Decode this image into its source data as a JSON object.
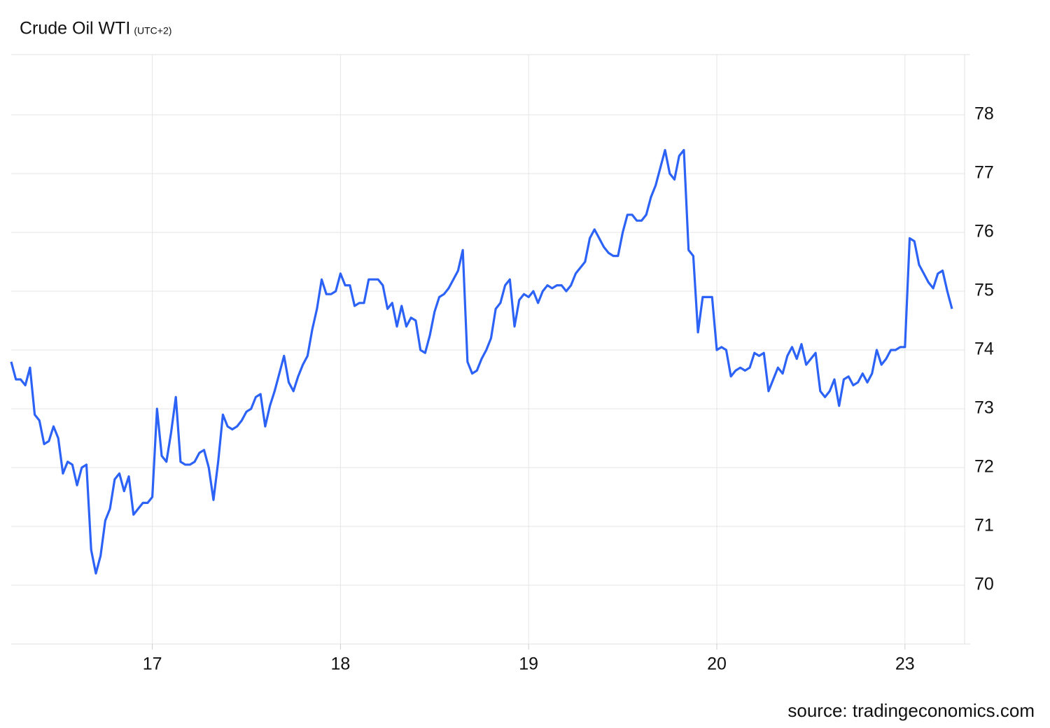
{
  "chart_data": {
    "type": "line",
    "title": "Crude Oil WTI",
    "subtitle": "(UTC+2)",
    "source": "source: tradingeconomics.com",
    "categories": [
      null,
      null,
      null,
      null,
      null,
      null,
      null,
      null,
      null,
      null,
      null,
      null,
      null,
      null,
      null,
      null,
      null,
      null,
      null,
      null,
      null,
      null,
      null,
      null,
      null,
      null,
      null,
      null,
      null,
      null,
      "17",
      null,
      null,
      null,
      null,
      null,
      null,
      null,
      null,
      null,
      null,
      null,
      null,
      null,
      null,
      null,
      null,
      null,
      null,
      null,
      null,
      null,
      null,
      null,
      null,
      null,
      null,
      null,
      null,
      null,
      null,
      null,
      null,
      null,
      null,
      null,
      null,
      null,
      null,
      null,
      "18",
      null,
      null,
      null,
      null,
      null,
      null,
      null,
      null,
      null,
      null,
      null,
      null,
      null,
      null,
      null,
      null,
      null,
      null,
      null,
      null,
      null,
      null,
      null,
      null,
      null,
      null,
      null,
      null,
      null,
      null,
      null,
      null,
      null,
      null,
      null,
      null,
      null,
      null,
      null,
      "19",
      null,
      null,
      null,
      null,
      null,
      null,
      null,
      null,
      null,
      null,
      null,
      null,
      null,
      null,
      null,
      null,
      null,
      null,
      null,
      null,
      null,
      null,
      null,
      null,
      null,
      null,
      null,
      null,
      null,
      null,
      null,
      null,
      null,
      null,
      null,
      null,
      null,
      null,
      null,
      "20",
      null,
      null,
      null,
      null,
      null,
      null,
      null,
      null,
      null,
      null,
      null,
      null,
      null,
      null,
      null,
      null,
      null,
      null,
      null,
      null,
      null,
      null,
      null,
      null,
      null,
      null,
      null,
      null,
      null,
      null,
      null,
      null,
      null,
      null,
      null,
      null,
      null,
      null,
      null,
      "23",
      null,
      null,
      null,
      null,
      null,
      null,
      null,
      null,
      null,
      null
    ],
    "series": [
      {
        "name": "Crude Oil WTI",
        "color": "#2c63f6",
        "values": [
          73.8,
          73.5,
          73.5,
          73.4,
          73.7,
          72.9,
          72.8,
          72.4,
          72.45,
          72.7,
          72.5,
          71.9,
          72.1,
          72.05,
          71.7,
          72.0,
          72.05,
          70.6,
          70.2,
          70.5,
          71.1,
          71.3,
          71.8,
          71.9,
          71.6,
          71.85,
          71.2,
          71.3,
          71.4,
          71.4,
          71.5,
          73.0,
          72.2,
          72.1,
          72.6,
          73.2,
          72.1,
          72.05,
          72.05,
          72.1,
          72.25,
          72.3,
          72.0,
          71.45,
          72.1,
          72.9,
          72.7,
          72.65,
          72.7,
          72.8,
          72.95,
          73.0,
          73.2,
          73.25,
          72.7,
          73.05,
          73.3,
          73.6,
          73.9,
          73.45,
          73.3,
          73.55,
          73.75,
          73.9,
          74.35,
          74.7,
          75.2,
          74.95,
          74.95,
          75.0,
          75.3,
          75.1,
          75.1,
          74.75,
          74.8,
          74.8,
          75.2,
          75.2,
          75.2,
          75.1,
          74.7,
          74.8,
          74.4,
          74.75,
          74.4,
          74.55,
          74.5,
          74.0,
          73.95,
          74.25,
          74.65,
          74.9,
          74.95,
          75.05,
          75.2,
          75.35,
          75.7,
          73.8,
          73.6,
          73.65,
          73.85,
          74.0,
          74.2,
          74.7,
          74.8,
          75.1,
          75.2,
          74.4,
          74.85,
          74.95,
          74.9,
          75.0,
          74.8,
          75.0,
          75.1,
          75.05,
          75.1,
          75.1,
          75.0,
          75.1,
          75.3,
          75.4,
          75.5,
          75.9,
          76.05,
          75.9,
          75.75,
          75.65,
          75.6,
          75.6,
          76.0,
          76.3,
          76.3,
          76.2,
          76.2,
          76.3,
          76.6,
          76.8,
          77.1,
          77.4,
          77.0,
          76.9,
          77.3,
          77.4,
          75.7,
          75.6,
          74.3,
          74.9,
          74.9,
          74.9,
          74.0,
          74.05,
          74.0,
          73.55,
          73.65,
          73.7,
          73.65,
          73.7,
          73.95,
          73.9,
          73.95,
          73.3,
          73.5,
          73.7,
          73.6,
          73.9,
          74.05,
          73.85,
          74.1,
          73.75,
          73.85,
          73.95,
          73.3,
          73.2,
          73.3,
          73.5,
          73.05,
          73.5,
          73.55,
          73.4,
          73.45,
          73.6,
          73.45,
          73.6,
          74.0,
          73.75,
          73.85,
          74.0,
          74.0,
          74.05,
          74.05,
          75.9,
          75.85,
          75.45,
          75.3,
          75.15,
          75.05,
          75.3,
          75.35,
          75.0,
          74.7
        ]
      }
    ],
    "ylim": [
      69,
      79
    ],
    "yticks": [
      70,
      71,
      72,
      73,
      74,
      75,
      76,
      77,
      78
    ],
    "grid": true
  }
}
